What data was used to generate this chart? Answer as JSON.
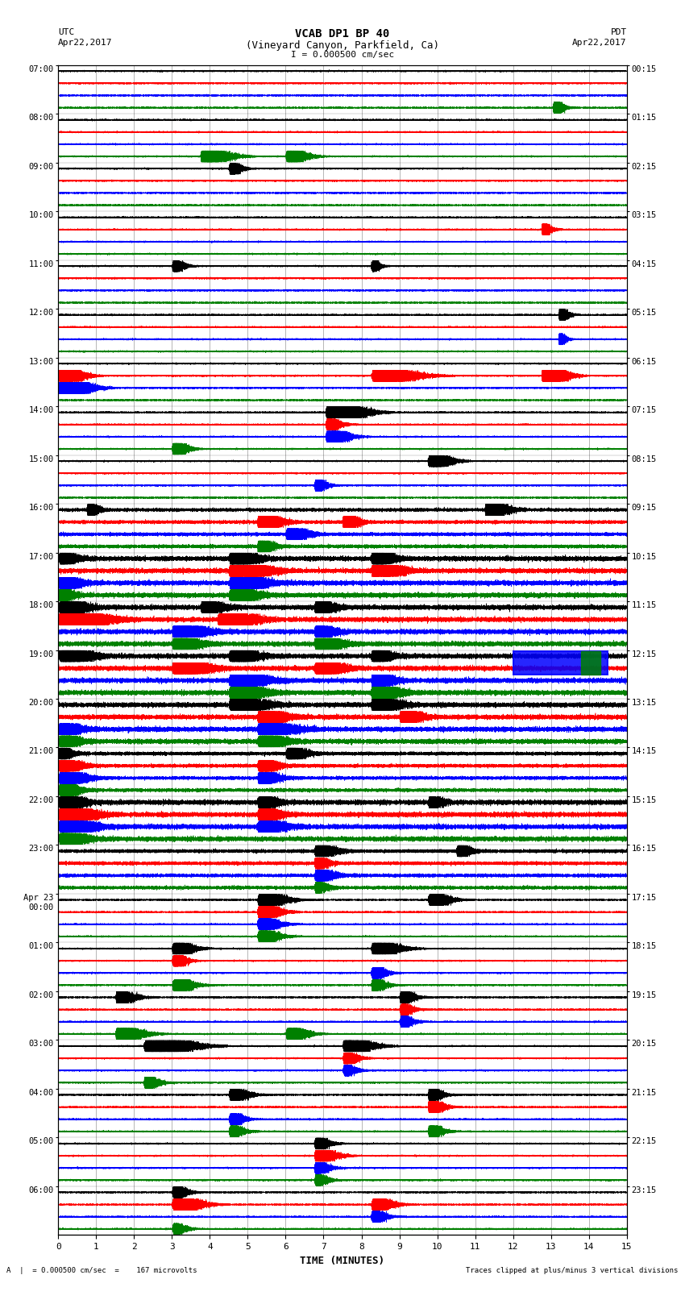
{
  "title_line1": "VCAB DP1 BP 40",
  "title_line2": "(Vineyard Canyon, Parkfield, Ca)",
  "scale_label": "I = 0.000500 cm/sec",
  "bottom_label": "TIME (MINUTES)",
  "bottom_note": "A  |  = 0.000500 cm/sec  =    167 microvolts",
  "bottom_note2": "Traces clipped at plus/minus 3 vertical divisions",
  "colors": [
    "black",
    "red",
    "blue",
    "green"
  ],
  "utc_labels": [
    "07:00",
    "08:00",
    "09:00",
    "10:00",
    "11:00",
    "12:00",
    "13:00",
    "14:00",
    "15:00",
    "16:00",
    "17:00",
    "18:00",
    "19:00",
    "20:00",
    "21:00",
    "22:00",
    "23:00",
    "Apr 23\n00:00",
    "01:00",
    "02:00",
    "03:00",
    "04:00",
    "05:00",
    "06:00"
  ],
  "pdt_labels": [
    "00:15",
    "01:15",
    "02:15",
    "03:15",
    "04:15",
    "05:15",
    "06:15",
    "07:15",
    "08:15",
    "09:15",
    "10:15",
    "11:15",
    "12:15",
    "13:15",
    "14:15",
    "15:15",
    "16:15",
    "17:15",
    "18:15",
    "19:15",
    "20:15",
    "21:15",
    "22:15",
    "23:15"
  ],
  "n_rows": 24,
  "traces_per_row": 4,
  "duration_minutes": 15,
  "background_color": "white",
  "figsize": [
    8.5,
    16.13
  ],
  "dpi": 100
}
